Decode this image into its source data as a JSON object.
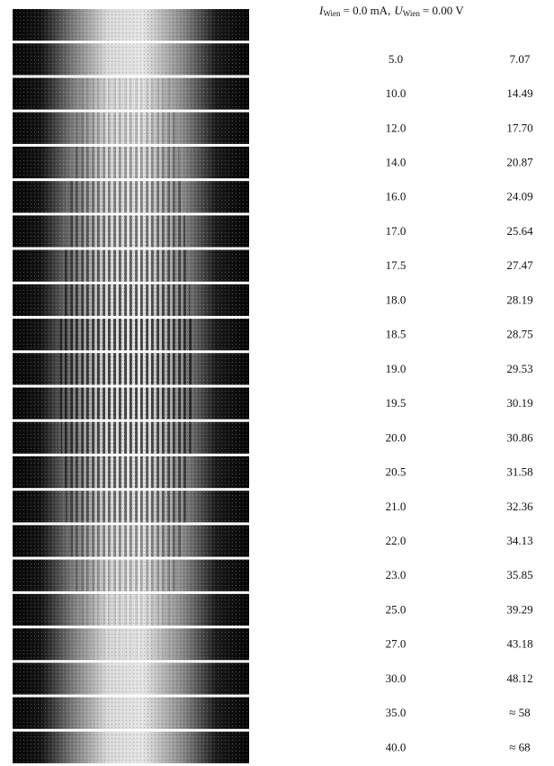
{
  "header": {
    "i_symbol": "I",
    "i_subscript": "Wien",
    "i_value": "= 0.0 mA,",
    "u_symbol": "U",
    "u_subscript": "Wien",
    "u_value": "= 0.00 V"
  },
  "table": {
    "rows": [
      [
        "5.0",
        "7.07"
      ],
      [
        "10.0",
        "14.49"
      ],
      [
        "12.0",
        "17.70"
      ],
      [
        "14.0",
        "20.87"
      ],
      [
        "16.0",
        "24.09"
      ],
      [
        "17.0",
        "25.64"
      ],
      [
        "17.5",
        "27.47"
      ],
      [
        "18.0",
        "28.19"
      ],
      [
        "18.5",
        "28.75"
      ],
      [
        "19.0",
        "29.53"
      ],
      [
        "19.5",
        "30.19"
      ],
      [
        "20.0",
        "30.86"
      ],
      [
        "20.5",
        "31.58"
      ],
      [
        "21.0",
        "32.36"
      ],
      [
        "22.0",
        "34.13"
      ],
      [
        "23.0",
        "35.85"
      ],
      [
        "25.0",
        "39.29"
      ],
      [
        "27.0",
        "43.18"
      ],
      [
        "30.0",
        "48.12"
      ],
      [
        "35.0",
        "≈ 58"
      ],
      [
        "40.0",
        "≈ 68"
      ]
    ]
  }
}
